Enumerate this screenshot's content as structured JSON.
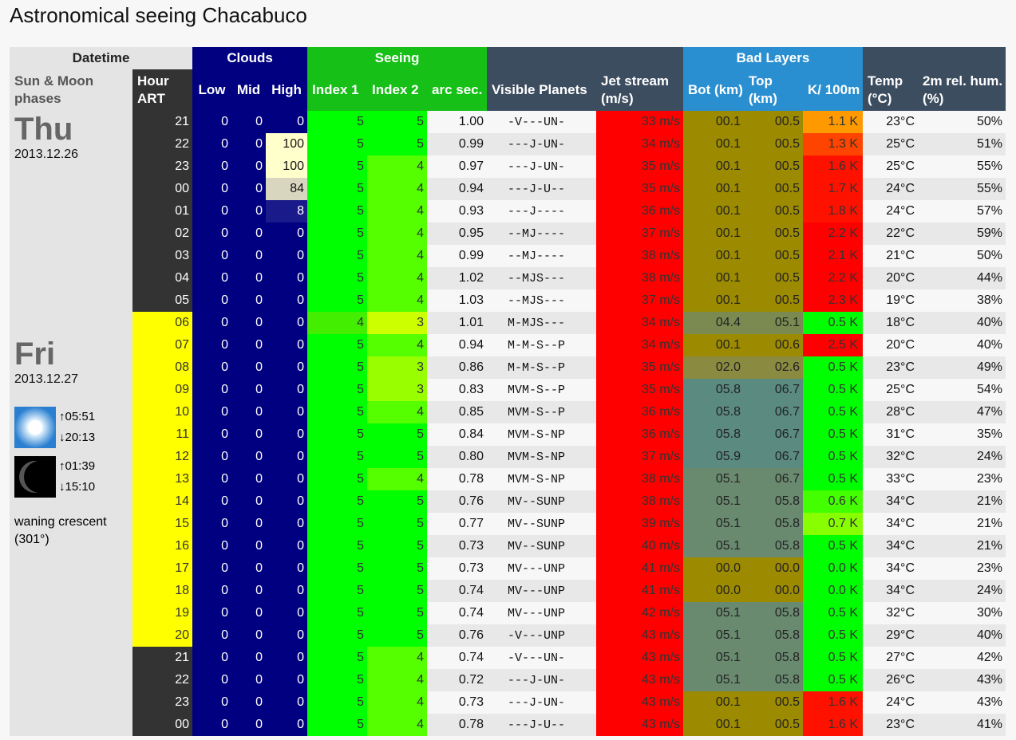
{
  "title": "Astronomical seeing Chacabuco",
  "headers": {
    "datetime": "Datetime",
    "clouds": "Clouds",
    "seeing": "Seeing",
    "bad_layers": "Bad Layers",
    "sun_moon": "Sun & Moon phases",
    "hour": "Hour ART",
    "low": "Low",
    "mid": "Mid",
    "high": "High",
    "index1": "Index 1",
    "index2": "Index 2",
    "arcsec": "arc sec.",
    "planets": "Visible Planets",
    "jet": "Jet stream (m/s)",
    "bot": "Bot (km)",
    "top": "Top (km)",
    "k": "K/ 100m",
    "temp": "Temp (°C)",
    "hum": "2m rel. hum. (%)"
  },
  "days": [
    {
      "name": "Thu",
      "date": "2013.12.26"
    },
    {
      "name": "Fri",
      "date": "2013.12.27",
      "sunrise": "↑05:51",
      "sunset": "↓20:13",
      "moonrise": "↑01:39",
      "moonset": "↓15:10",
      "moon_phase": "waning crescent (301°)"
    }
  ],
  "rows": [
    {
      "hour": "21",
      "low": "0",
      "mid": "0",
      "high": "0",
      "i1": "5",
      "i2": "5",
      "arc": "1.00",
      "pl": "-V---UN-",
      "jet": "33 m/s",
      "bot": "00.1",
      "top": "00.5",
      "k": "1.1 K",
      "temp": "23°C",
      "hum": "50%",
      "day": false,
      "hc": "#000080",
      "kc": "#ff9900",
      "lc": "#9c8a00",
      "i2c": "#00ff00"
    },
    {
      "hour": "22",
      "low": "0",
      "mid": "0",
      "high": "100",
      "i1": "5",
      "i2": "5",
      "arc": "0.99",
      "pl": "---J-UN-",
      "jet": "34 m/s",
      "bot": "00.1",
      "top": "00.5",
      "k": "1.3 K",
      "temp": "25°C",
      "hum": "51%",
      "day": false,
      "hc": "#ffffcc",
      "kc": "#ff4400",
      "lc": "#9c8a00",
      "i2c": "#00ff00"
    },
    {
      "hour": "23",
      "low": "0",
      "mid": "0",
      "high": "100",
      "i1": "5",
      "i2": "4",
      "arc": "0.97",
      "pl": "---J-UN-",
      "jet": "35 m/s",
      "bot": "00.1",
      "top": "00.5",
      "k": "1.6 K",
      "temp": "25°C",
      "hum": "55%",
      "day": false,
      "hc": "#ffffcc",
      "kc": "#ff1100",
      "lc": "#9c8a00",
      "i2c": "#55ff00"
    },
    {
      "hour": "00",
      "low": "0",
      "mid": "0",
      "high": "84",
      "i1": "5",
      "i2": "4",
      "arc": "0.94",
      "pl": "---J-U--",
      "jet": "35 m/s",
      "bot": "00.1",
      "top": "00.5",
      "k": "1.7 K",
      "temp": "24°C",
      "hum": "55%",
      "day": false,
      "hc": "#d9d6c0",
      "kc": "#ff1100",
      "lc": "#9c8a00",
      "i2c": "#55ff00"
    },
    {
      "hour": "01",
      "low": "0",
      "mid": "0",
      "high": "8",
      "i1": "5",
      "i2": "4",
      "arc": "0.93",
      "pl": "---J----",
      "jet": "36 m/s",
      "bot": "00.1",
      "top": "00.5",
      "k": "1.8 K",
      "temp": "24°C",
      "hum": "57%",
      "day": false,
      "hc": "#1a1a8a",
      "kc": "#ff1100",
      "lc": "#9c8a00",
      "i2c": "#55ff00"
    },
    {
      "hour": "02",
      "low": "0",
      "mid": "0",
      "high": "0",
      "i1": "5",
      "i2": "4",
      "arc": "0.95",
      "pl": "--MJ----",
      "jet": "37 m/s",
      "bot": "00.1",
      "top": "00.5",
      "k": "2.2 K",
      "temp": "22°C",
      "hum": "59%",
      "day": false,
      "hc": "#000080",
      "kc": "#ff0000",
      "lc": "#9c8a00",
      "i2c": "#55ff00"
    },
    {
      "hour": "03",
      "low": "0",
      "mid": "0",
      "high": "0",
      "i1": "5",
      "i2": "4",
      "arc": "0.99",
      "pl": "--MJ----",
      "jet": "38 m/s",
      "bot": "00.1",
      "top": "00.5",
      "k": "2.1 K",
      "temp": "21°C",
      "hum": "50%",
      "day": false,
      "hc": "#000080",
      "kc": "#ff0000",
      "lc": "#9c8a00",
      "i2c": "#55ff00"
    },
    {
      "hour": "04",
      "low": "0",
      "mid": "0",
      "high": "0",
      "i1": "5",
      "i2": "4",
      "arc": "1.02",
      "pl": "--MJS---",
      "jet": "38 m/s",
      "bot": "00.1",
      "top": "00.5",
      "k": "2.2 K",
      "temp": "20°C",
      "hum": "44%",
      "day": false,
      "hc": "#000080",
      "kc": "#ff0000",
      "lc": "#9c8a00",
      "i2c": "#55ff00"
    },
    {
      "hour": "05",
      "low": "0",
      "mid": "0",
      "high": "0",
      "i1": "5",
      "i2": "4",
      "arc": "1.03",
      "pl": "--MJS---",
      "jet": "37 m/s",
      "bot": "00.1",
      "top": "00.5",
      "k": "2.3 K",
      "temp": "19°C",
      "hum": "38%",
      "day": false,
      "hc": "#000080",
      "kc": "#ff0000",
      "lc": "#9c8a00",
      "i2c": "#55ff00"
    },
    {
      "hour": "06",
      "low": "0",
      "mid": "0",
      "high": "0",
      "i1": "4",
      "i2": "3",
      "arc": "1.01",
      "pl": "M-MJS---",
      "jet": "34 m/s",
      "bot": "04.4",
      "top": "05.1",
      "k": "0.5 K",
      "temp": "18°C",
      "hum": "40%",
      "day": true,
      "hc": "#000080",
      "kc": "#00ff00",
      "lc": "#7a8a50",
      "i2c": "#ccff00",
      "i1c": "#44ee00"
    },
    {
      "hour": "07",
      "low": "0",
      "mid": "0",
      "high": "0",
      "i1": "5",
      "i2": "4",
      "arc": "0.94",
      "pl": "M-M-S--P",
      "jet": "34 m/s",
      "bot": "00.1",
      "top": "00.6",
      "k": "2.5 K",
      "temp": "20°C",
      "hum": "40%",
      "day": true,
      "hc": "#000080",
      "kc": "#ff0000",
      "lc": "#9c8a00",
      "i2c": "#55ff00"
    },
    {
      "hour": "08",
      "low": "0",
      "mid": "0",
      "high": "0",
      "i1": "5",
      "i2": "3",
      "arc": "0.86",
      "pl": "M-M-S--P",
      "jet": "35 m/s",
      "bot": "02.0",
      "top": "02.6",
      "k": "0.5 K",
      "temp": "23°C",
      "hum": "49%",
      "day": true,
      "hc": "#000080",
      "kc": "#00ff00",
      "lc": "#8a8a40",
      "i2c": "#99ff00"
    },
    {
      "hour": "09",
      "low": "0",
      "mid": "0",
      "high": "0",
      "i1": "5",
      "i2": "3",
      "arc": "0.83",
      "pl": "MVM-S--P",
      "jet": "35 m/s",
      "bot": "05.8",
      "top": "06.7",
      "k": "0.5 K",
      "temp": "25°C",
      "hum": "54%",
      "day": true,
      "hc": "#000080",
      "kc": "#00ff00",
      "lc": "#5a8a80",
      "i2c": "#99ff00"
    },
    {
      "hour": "10",
      "low": "0",
      "mid": "0",
      "high": "0",
      "i1": "5",
      "i2": "4",
      "arc": "0.85",
      "pl": "MVM-S--P",
      "jet": "36 m/s",
      "bot": "05.8",
      "top": "06.7",
      "k": "0.5 K",
      "temp": "28°C",
      "hum": "47%",
      "day": true,
      "hc": "#000080",
      "kc": "#00ff00",
      "lc": "#5a8a80",
      "i2c": "#55ff00"
    },
    {
      "hour": "11",
      "low": "0",
      "mid": "0",
      "high": "0",
      "i1": "5",
      "i2": "5",
      "arc": "0.84",
      "pl": "MVM-S-NP",
      "jet": "36 m/s",
      "bot": "05.8",
      "top": "06.7",
      "k": "0.5 K",
      "temp": "31°C",
      "hum": "35%",
      "day": true,
      "hc": "#000080",
      "kc": "#00ff00",
      "lc": "#5a8a80",
      "i2c": "#00ff00"
    },
    {
      "hour": "12",
      "low": "0",
      "mid": "0",
      "high": "0",
      "i1": "5",
      "i2": "5",
      "arc": "0.80",
      "pl": "MVM-S-NP",
      "jet": "37 m/s",
      "bot": "05.9",
      "top": "06.7",
      "k": "0.5 K",
      "temp": "32°C",
      "hum": "24%",
      "day": true,
      "hc": "#000080",
      "kc": "#00ff00",
      "lc": "#5a8a80",
      "i2c": "#00ff00"
    },
    {
      "hour": "13",
      "low": "0",
      "mid": "0",
      "high": "0",
      "i1": "5",
      "i2": "4",
      "arc": "0.78",
      "pl": "MVM-S-NP",
      "jet": "38 m/s",
      "bot": "05.1",
      "top": "06.7",
      "k": "0.5 K",
      "temp": "33°C",
      "hum": "23%",
      "day": true,
      "hc": "#000080",
      "kc": "#00ff00",
      "lc": "#6a8a70",
      "i2c": "#55ff00"
    },
    {
      "hour": "14",
      "low": "0",
      "mid": "0",
      "high": "0",
      "i1": "5",
      "i2": "5",
      "arc": "0.76",
      "pl": "MV--SUNP",
      "jet": "38 m/s",
      "bot": "05.1",
      "top": "05.8",
      "k": "0.6 K",
      "temp": "34°C",
      "hum": "21%",
      "day": true,
      "hc": "#000080",
      "kc": "#44ff00",
      "lc": "#6a8a70",
      "i2c": "#00ff00"
    },
    {
      "hour": "15",
      "low": "0",
      "mid": "0",
      "high": "0",
      "i1": "5",
      "i2": "5",
      "arc": "0.77",
      "pl": "MV--SUNP",
      "jet": "39 m/s",
      "bot": "05.1",
      "top": "05.8",
      "k": "0.7 K",
      "temp": "34°C",
      "hum": "21%",
      "day": true,
      "hc": "#000080",
      "kc": "#88ff00",
      "lc": "#6a8a70",
      "i2c": "#00ff00"
    },
    {
      "hour": "16",
      "low": "0",
      "mid": "0",
      "high": "0",
      "i1": "5",
      "i2": "5",
      "arc": "0.73",
      "pl": "MV--SUNP",
      "jet": "40 m/s",
      "bot": "05.1",
      "top": "05.8",
      "k": "0.5 K",
      "temp": "34°C",
      "hum": "21%",
      "day": true,
      "hc": "#000080",
      "kc": "#00ff00",
      "lc": "#6a8a70",
      "i2c": "#00ff00"
    },
    {
      "hour": "17",
      "low": "0",
      "mid": "0",
      "high": "0",
      "i1": "5",
      "i2": "5",
      "arc": "0.73",
      "pl": "MV---UNP",
      "jet": "41 m/s",
      "bot": "00.0",
      "top": "00.0",
      "k": "0.0 K",
      "temp": "34°C",
      "hum": "23%",
      "day": true,
      "hc": "#000080",
      "kc": "#00ff00",
      "lc": "#9c8a00",
      "i2c": "#00ff00"
    },
    {
      "hour": "18",
      "low": "0",
      "mid": "0",
      "high": "0",
      "i1": "5",
      "i2": "5",
      "arc": "0.74",
      "pl": "MV---UNP",
      "jet": "41 m/s",
      "bot": "00.0",
      "top": "00.0",
      "k": "0.0 K",
      "temp": "34°C",
      "hum": "24%",
      "day": true,
      "hc": "#000080",
      "kc": "#00ff00",
      "lc": "#9c8a00",
      "i2c": "#00ff00"
    },
    {
      "hour": "19",
      "low": "0",
      "mid": "0",
      "high": "0",
      "i1": "5",
      "i2": "5",
      "arc": "0.74",
      "pl": "MV---UNP",
      "jet": "42 m/s",
      "bot": "05.1",
      "top": "05.8",
      "k": "0.5 K",
      "temp": "32°C",
      "hum": "30%",
      "day": true,
      "hc": "#000080",
      "kc": "#00ff00",
      "lc": "#6a8a70",
      "i2c": "#00ff00"
    },
    {
      "hour": "20",
      "low": "0",
      "mid": "0",
      "high": "0",
      "i1": "5",
      "i2": "5",
      "arc": "0.76",
      "pl": "-V---UNP",
      "jet": "43 m/s",
      "bot": "05.1",
      "top": "05.8",
      "k": "0.5 K",
      "temp": "29°C",
      "hum": "40%",
      "day": true,
      "hc": "#000080",
      "kc": "#00ff00",
      "lc": "#6a8a70",
      "i2c": "#00ff00"
    },
    {
      "hour": "21",
      "low": "0",
      "mid": "0",
      "high": "0",
      "i1": "5",
      "i2": "4",
      "arc": "0.74",
      "pl": "-V---UN-",
      "jet": "43 m/s",
      "bot": "05.1",
      "top": "05.8",
      "k": "0.5 K",
      "temp": "27°C",
      "hum": "42%",
      "day": false,
      "hc": "#000080",
      "kc": "#00ff00",
      "lc": "#6a8a70",
      "i2c": "#55ff00"
    },
    {
      "hour": "22",
      "low": "0",
      "mid": "0",
      "high": "0",
      "i1": "5",
      "i2": "4",
      "arc": "0.72",
      "pl": "---J-UN-",
      "jet": "43 m/s",
      "bot": "05.1",
      "top": "05.8",
      "k": "0.5 K",
      "temp": "26°C",
      "hum": "43%",
      "day": false,
      "hc": "#000080",
      "kc": "#00ff00",
      "lc": "#6a8a70",
      "i2c": "#55ff00"
    },
    {
      "hour": "23",
      "low": "0",
      "mid": "0",
      "high": "0",
      "i1": "5",
      "i2": "4",
      "arc": "0.73",
      "pl": "---J-UN-",
      "jet": "43 m/s",
      "bot": "00.1",
      "top": "00.5",
      "k": "1.6 K",
      "temp": "24°C",
      "hum": "43%",
      "day": false,
      "hc": "#000080",
      "kc": "#ff1100",
      "lc": "#9c8a00",
      "i2c": "#55ff00"
    },
    {
      "hour": "00",
      "low": "0",
      "mid": "0",
      "high": "0",
      "i1": "5",
      "i2": "4",
      "arc": "0.78",
      "pl": "---J-U--",
      "jet": "43 m/s",
      "bot": "00.1",
      "top": "00.5",
      "k": "1.6 K",
      "temp": "23°C",
      "hum": "41%",
      "day": false,
      "hc": "#000080",
      "kc": "#ff1100",
      "lc": "#9c8a00",
      "i2c": "#55ff00"
    }
  ]
}
